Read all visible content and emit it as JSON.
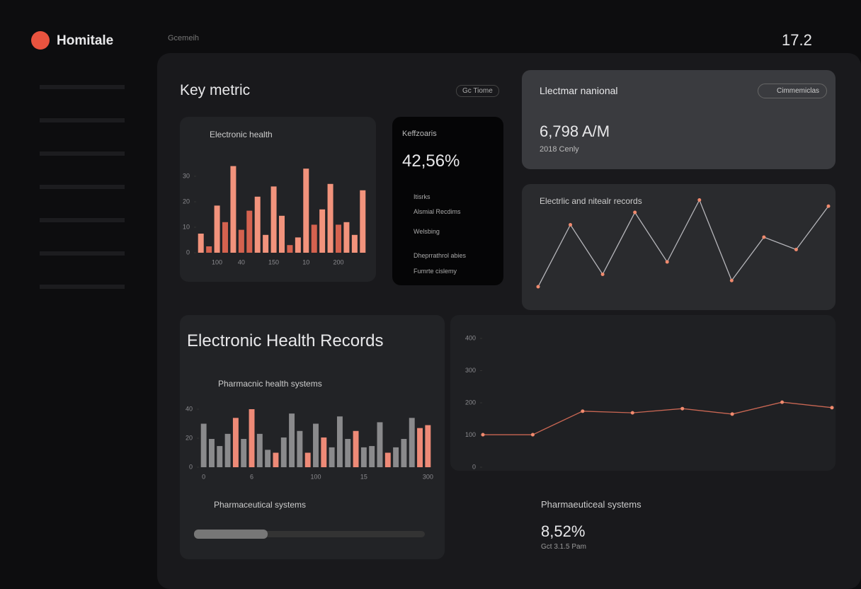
{
  "sidebar": {
    "brand": "Homitale"
  },
  "header": {
    "breadcrumb": "Gcemeih",
    "time": "17.2"
  },
  "key_metric": {
    "title": "Key metric",
    "button": "Gc Tiome"
  },
  "metric_card": {
    "label": "Keffzoaris",
    "value": "42,56%",
    "items": [
      "Itisrks",
      "Alsmial Recdims",
      "Welsbing",
      "Dheprrathrol abies",
      "Fumrte cislemy"
    ]
  },
  "national_card": {
    "title": "Llectmar nanional",
    "pill": "Cimmemiclas",
    "value": "6,798 A/M",
    "note": "2018 Cenly"
  },
  "ehr": {
    "title": "Electronic Health Records"
  },
  "pharma_progress": {
    "label": "Pharmaceutical systems",
    "progress": 32
  },
  "pharma_stat": {
    "label": "Pharmaeuticeal systems",
    "value": "8,52%",
    "note": "Gct 3.1.5 Pam"
  },
  "chart_data": [
    {
      "type": "bar",
      "title": "Electronic health",
      "categories": [
        null,
        null,
        "100",
        null,
        null,
        "40",
        null,
        null,
        null,
        "150",
        null,
        null,
        null,
        "10",
        null,
        null,
        null,
        "200",
        null,
        null,
        null
      ],
      "values": [
        7.5,
        2.5,
        18.5,
        12,
        34,
        9,
        16.5,
        22,
        7,
        26,
        14.5,
        3,
        6,
        33,
        11,
        17,
        27,
        11,
        12,
        7,
        24.5
      ],
      "colors": [
        "#f2937c",
        "#d4624f",
        "#f2937c",
        "#d4624f",
        "#f2937c",
        "#d4624f",
        "#d4624f",
        "#f2937c",
        "#f2937c",
        "#f2937c",
        "#f2937c",
        "#d4624f",
        "#f2937c",
        "#f2937c",
        "#d4624f",
        "#f2937c",
        "#f2937c",
        "#d4624f",
        "#f2937c",
        "#f2937c",
        "#f2937c"
      ],
      "ylim": [
        0,
        40
      ],
      "yticks": [
        0,
        10,
        20,
        30
      ]
    },
    {
      "type": "line",
      "title": "Electrlic and nitealr records",
      "categories": [
        null,
        null,
        null,
        null,
        null,
        null,
        null,
        null,
        null,
        null
      ],
      "values": [
        20,
        70,
        30,
        80,
        40,
        90,
        25,
        60,
        50,
        85
      ],
      "color": "#cfcfd4",
      "ylim": [
        0,
        100
      ]
    },
    {
      "type": "bar",
      "title": "Pharmacnic health systems",
      "categories": [
        "0",
        null,
        null,
        null,
        null,
        null,
        "6",
        null,
        null,
        null,
        null,
        null,
        null,
        null,
        "100",
        null,
        null,
        null,
        null,
        null,
        "15",
        null,
        null,
        null,
        null,
        null,
        null,
        null,
        "300"
      ],
      "values": [
        30,
        19.5,
        14.6,
        23,
        34,
        19.5,
        40,
        23,
        12,
        10,
        20.5,
        37,
        25,
        10,
        30,
        20.5,
        13.7,
        35,
        19.5,
        25,
        13.7,
        14.6,
        31,
        10,
        13.7,
        19.5,
        34,
        27,
        29
      ],
      "colors": [
        "#8a8a8c",
        "#8a8a8c",
        "#8a8a8c",
        "#8a8a8c",
        "#ee8a77",
        "#8a8a8c",
        "#ee8a77",
        "#8a8a8c",
        "#8a8a8c",
        "#ee8a77",
        "#8a8a8c",
        "#8a8a8c",
        "#8a8a8c",
        "#ee8a77",
        "#8a8a8c",
        "#ee8a77",
        "#8a8a8c",
        "#8a8a8c",
        "#8a8a8c",
        "#ee8a77",
        "#8a8a8c",
        "#8a8a8c",
        "#8a8a8c",
        "#ee8a77",
        "#8a8a8c",
        "#8a8a8c",
        "#8a8a8c",
        "#ee8a77",
        "#ee8a77"
      ],
      "ylim": [
        0,
        40
      ],
      "yticks": [
        0,
        20,
        40
      ]
    },
    {
      "type": "line",
      "categories": [
        null,
        null,
        null,
        null,
        null,
        null,
        null,
        null
      ],
      "values": [
        101,
        101,
        174,
        169,
        182,
        165,
        202,
        185
      ],
      "color": "#e8735c",
      "ylim": [
        0,
        400
      ],
      "yticks": [
        0,
        100,
        200,
        300,
        400
      ]
    }
  ]
}
